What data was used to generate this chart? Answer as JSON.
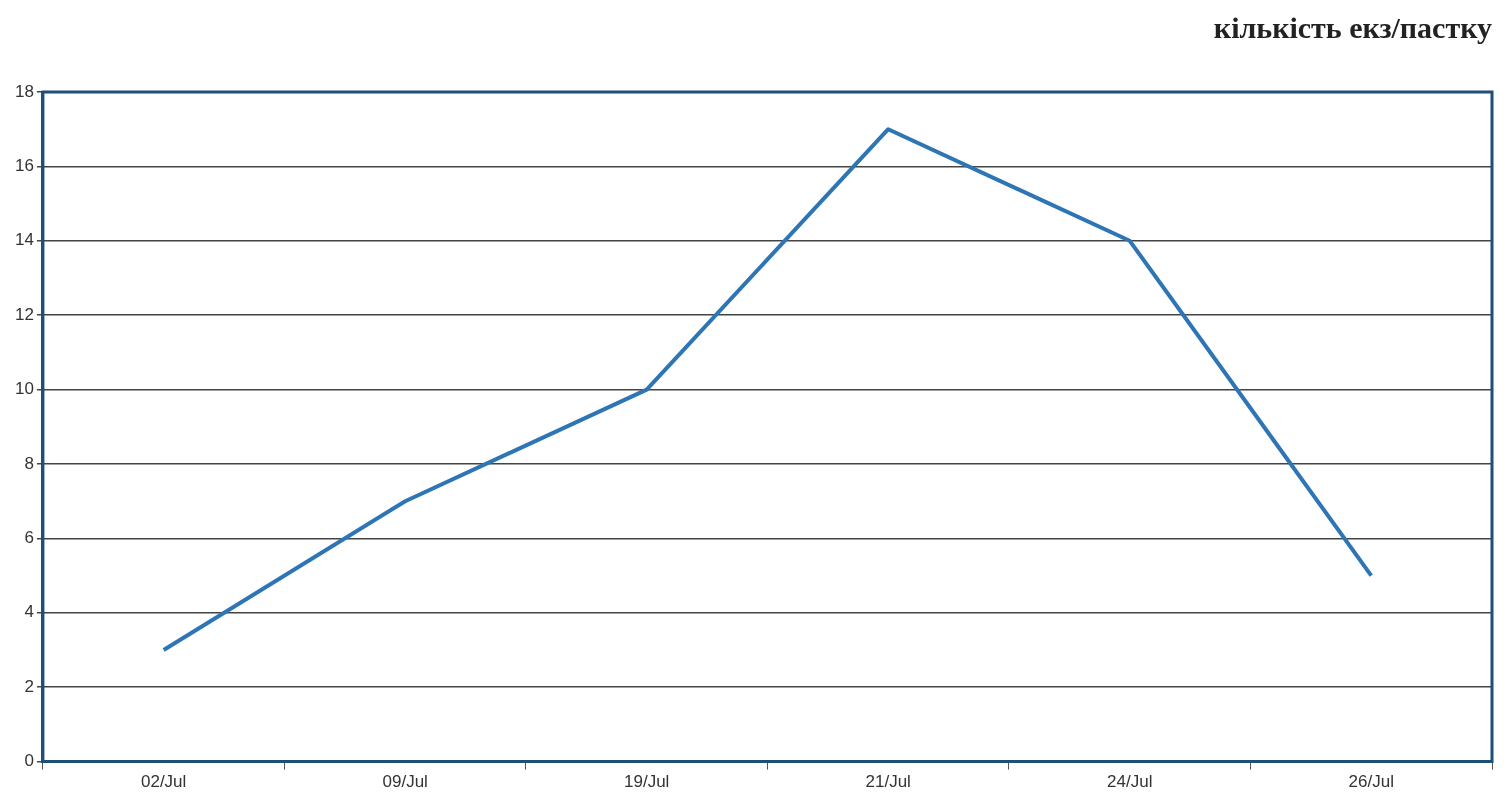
{
  "chart_data": {
    "type": "line",
    "title": "кількість екз/пастку",
    "categories": [
      "02/Jul",
      "09/Jul",
      "19/Jul",
      "21/Jul",
      "24/Jul",
      "26/Jul"
    ],
    "series": [
      {
        "color": "#2e75b6",
        "values": [
          3,
          7,
          10,
          17,
          14,
          5
        ]
      }
    ],
    "ylim": [
      0,
      18
    ],
    "yticks": [
      0,
      2,
      4,
      6,
      8,
      10,
      12,
      14,
      16,
      18
    ],
    "grid": "y",
    "legend": false,
    "marker": "none",
    "line_style": "solid"
  }
}
